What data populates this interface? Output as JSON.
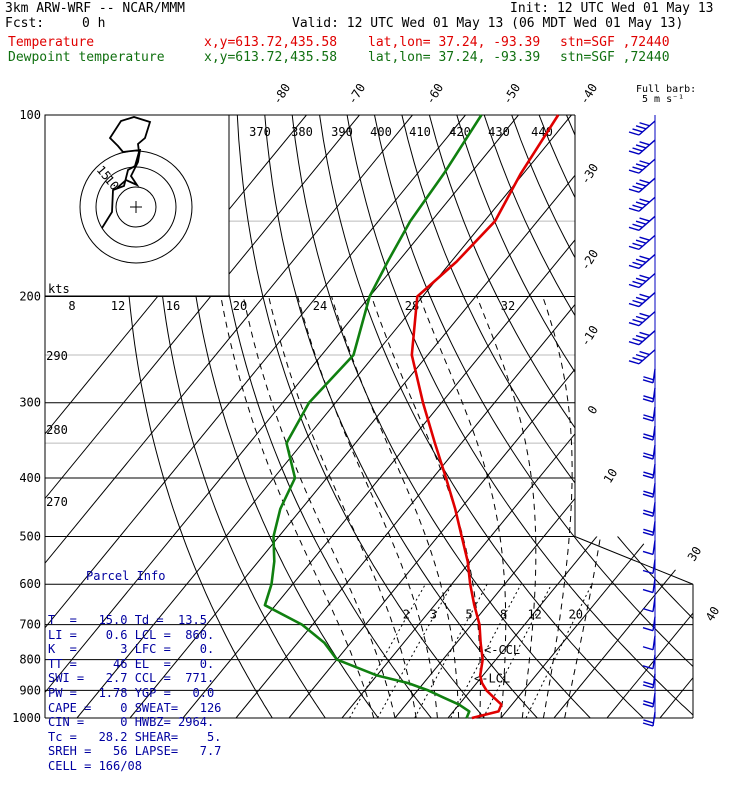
{
  "header": {
    "model": "3km ARW-WRF -- NCAR/MMM",
    "init": "Init: 12 UTC Wed 01 May 13",
    "fcst_label": "Fcst:",
    "fcst_value": "0 h",
    "valid": "Valid: 12 UTC Wed 01 May 13 (06 MDT Wed 01 May 13)",
    "temp_label": "Temperature",
    "dew_label": "Dewpoint temperature",
    "xy": "x,y=613.72,435.58",
    "latlon": "lat,lon= 37.24, -93.39",
    "stn": "stn=SGF ,72440"
  },
  "barb_legend": {
    "title": "Full barb:",
    "value": "5 m s⁻¹"
  },
  "hodo_units": "kts",
  "colors": {
    "temperature": "#e00000",
    "dewpoint": "#108010",
    "wind": "#0000c0",
    "parcel_text": "#0000a0"
  },
  "chart_data": {
    "type": "line",
    "pressure_levels": [
      100,
      200,
      300,
      400,
      500,
      600,
      700,
      800,
      900,
      1000
    ],
    "isotherm_labels": [
      -80,
      -70,
      -60,
      -50,
      -40,
      -30,
      -20,
      -10,
      0,
      10,
      30,
      40
    ],
    "theta_labels": [
      370,
      380,
      390,
      400,
      410,
      420,
      430,
      440
    ],
    "theta_low_labels": [
      290,
      280,
      270
    ],
    "mixing_ratio_labels": [
      2,
      3,
      5,
      8,
      12,
      20
    ],
    "hodo_ring_labels": [
      8,
      12,
      16,
      20,
      24,
      28,
      32
    ],
    "hodo_small_labels": [
      "15",
      "10"
    ],
    "series": [
      {
        "name": "Temperature",
        "p": [
          1000,
          975,
          950,
          925,
          900,
          875,
          850,
          800,
          750,
          700,
          650,
          600,
          550,
          500,
          450,
          400,
          350,
          300,
          250,
          200,
          175,
          150,
          125,
          100
        ],
        "t": [
          14.5,
          18.5,
          18.0,
          15.5,
          13.0,
          11.0,
          9.5,
          7.5,
          4.5,
          1.5,
          -2.5,
          -6.5,
          -10.5,
          -15.5,
          -21.0,
          -27.5,
          -35.0,
          -43.5,
          -53.0,
          -61.0,
          -59.0,
          -58.0,
          -60.5,
          -62.5
        ]
      },
      {
        "name": "Dewpoint temperature",
        "p": [
          1000,
          975,
          950,
          925,
          900,
          875,
          850,
          800,
          750,
          700,
          650,
          600,
          550,
          500,
          450,
          400,
          350,
          300,
          250,
          200,
          175,
          150,
          125,
          100
        ],
        "td": [
          13.5,
          13.0,
          10.0,
          6.0,
          2.0,
          -3.0,
          -10.0,
          -20.0,
          -25.0,
          -32.0,
          -42.0,
          -44.0,
          -47.0,
          -51.0,
          -54.0,
          -56.0,
          -63.0,
          -65.0,
          -64.0,
          -70.0,
          -72.0,
          -74.0,
          -75.0,
          -77.0
        ]
      }
    ],
    "annotations": [
      "<-CCL",
      "<-LCL"
    ]
  },
  "parcel": {
    "title": "Parcel Info",
    "rows": [
      "T  =   15.0 Td =  13.5",
      "LI =    0.6 LCL =  860.",
      "K  =      3 LFC =    0.",
      "TT =     46 EL  =    0.",
      "SWI =   2.7 CCL =  771.",
      "PW =   1.78 YGP =   0.0",
      "CAPE =    0 SWEAT=   126",
      "CIN =     0 HWBZ= 2964.",
      "Tc =   28.2 SHEAR=    5.",
      "SREH =   56 LAPSE=   7.7",
      "CELL = 166/08"
    ]
  }
}
